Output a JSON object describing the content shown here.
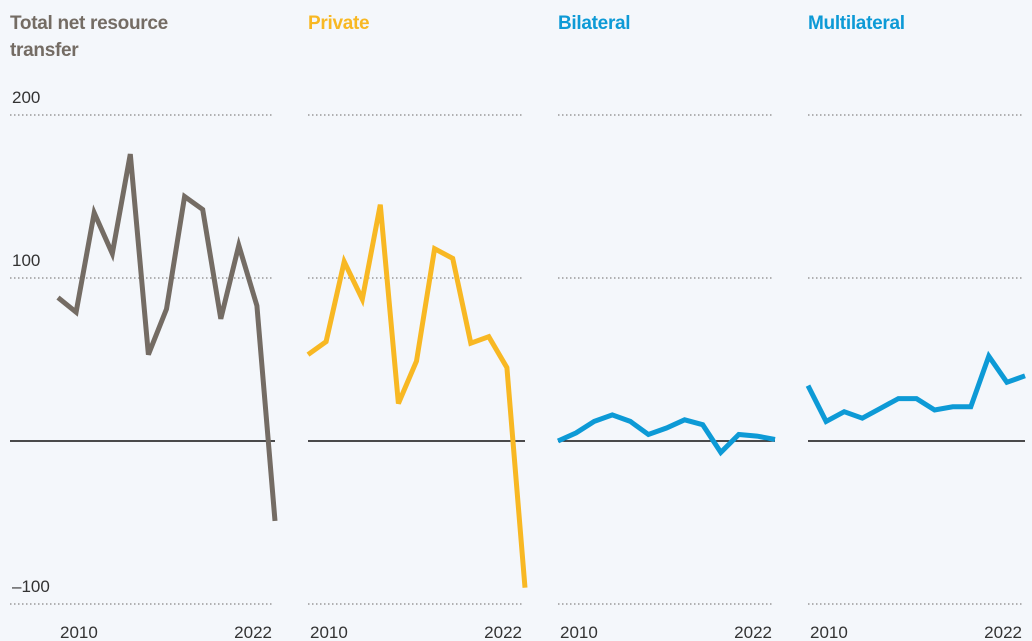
{
  "chart_data": [
    {
      "type": "line",
      "title": "Total net resource transfer",
      "x": [
        2010,
        2011,
        2012,
        2013,
        2014,
        2015,
        2016,
        2017,
        2018,
        2019,
        2020,
        2021,
        2022
      ],
      "series": [
        {
          "color": "#746c64",
          "values": [
            88,
            79,
            140,
            115,
            176,
            53,
            81,
            150,
            142,
            75,
            120,
            83,
            -49
          ]
        }
      ],
      "xlim": [
        2010,
        2022
      ],
      "xticks": [
        2010,
        2022
      ],
      "ylim": [
        -100,
        200
      ],
      "yticks": [
        {
          "value": -100,
          "label": "–100"
        },
        100,
        200
      ]
    },
    {
      "type": "line",
      "title": "Private",
      "x": [
        2010,
        2011,
        2012,
        2013,
        2014,
        2015,
        2016,
        2017,
        2018,
        2019,
        2020,
        2021,
        2022
      ],
      "series": [
        {
          "color": "#f8b823",
          "values": [
            53,
            61,
            110,
            87,
            145,
            23,
            49,
            118,
            112,
            60,
            64,
            45,
            -90
          ]
        }
      ],
      "xlim": [
        2010,
        2022
      ],
      "xticks": [
        2010,
        2022
      ],
      "ylim": [
        -100,
        200
      ],
      "yticks": [
        {
          "value": -100,
          "label": "–100"
        },
        100,
        200
      ]
    },
    {
      "type": "line",
      "title": "Bilateral",
      "x": [
        2010,
        2011,
        2012,
        2013,
        2014,
        2015,
        2016,
        2017,
        2018,
        2019,
        2020,
        2021,
        2022
      ],
      "series": [
        {
          "color": "#0d9ad6",
          "values": [
            0,
            5,
            12,
            16,
            12,
            4,
            8,
            13,
            10,
            -7,
            4,
            3,
            1
          ]
        }
      ],
      "xlim": [
        2010,
        2022
      ],
      "xticks": [
        2010,
        2022
      ],
      "ylim": [
        -100,
        200
      ],
      "yticks": [
        {
          "value": -100,
          "label": "–100"
        },
        100,
        200
      ]
    },
    {
      "type": "line",
      "title": "Multilateral",
      "x": [
        2010,
        2011,
        2012,
        2013,
        2014,
        2015,
        2016,
        2017,
        2018,
        2019,
        2020,
        2021,
        2022
      ],
      "series": [
        {
          "color": "#0d9ad6",
          "values": [
            34,
            12,
            18,
            14,
            20,
            26,
            26,
            19,
            21,
            21,
            52,
            36,
            40
          ]
        }
      ],
      "xlim": [
        2010,
        2022
      ],
      "xticks": [
        2010,
        2022
      ],
      "ylim": [
        -100,
        200
      ],
      "yticks": [
        {
          "value": -100,
          "label": "–100"
        },
        100,
        200
      ]
    }
  ]
}
